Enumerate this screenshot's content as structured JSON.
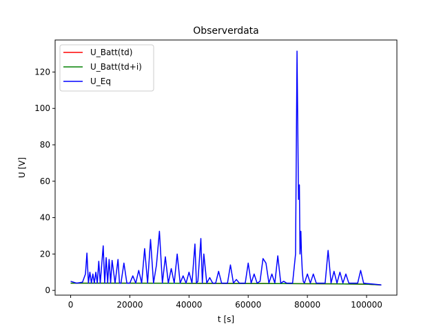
{
  "chart_data": {
    "type": "line",
    "title": "Observerdata",
    "xlabel": "t [s]",
    "ylabel": "U [V]",
    "xlim": [
      -5250,
      110250
    ],
    "ylim": [
      -2.6,
      137.6
    ],
    "xticks": [
      0,
      20000,
      40000,
      60000,
      80000,
      100000
    ],
    "xtick_labels": [
      "0",
      "20000",
      "40000",
      "60000",
      "80000",
      "100000"
    ],
    "yticks": [
      0,
      20,
      40,
      60,
      80,
      100,
      120
    ],
    "ytick_labels": [
      "0",
      "20",
      "40",
      "60",
      "80",
      "100",
      "120"
    ],
    "grid": false,
    "legend_position": "top-left",
    "colors": {
      "red": "#ff0000",
      "green": "#008000",
      "blue": "#0000ff"
    },
    "series": [
      {
        "name": "U_Batt(td)",
        "color": "#ff0000",
        "x": [
          0,
          20000,
          40000,
          60000,
          78000,
          90000,
          100000,
          105000
        ],
        "y": [
          4.0,
          4.0,
          3.9,
          3.8,
          3.7,
          3.6,
          3.4,
          3.0
        ]
      },
      {
        "name": "U_Batt(td+i)",
        "color": "#008000",
        "x": [
          0,
          20000,
          40000,
          60000,
          78000,
          90000,
          100000,
          105000
        ],
        "y": [
          4.0,
          4.0,
          3.9,
          3.8,
          3.7,
          3.6,
          3.4,
          3.0
        ]
      },
      {
        "name": "U_Eq",
        "color": "#0000ff",
        "x": [
          0,
          2000,
          4000,
          5000,
          5500,
          6000,
          6500,
          7000,
          7500,
          8000,
          8500,
          9000,
          9500,
          10000,
          11000,
          11500,
          12000,
          12500,
          13000,
          13500,
          14000,
          15000,
          16000,
          16500,
          17000,
          18000,
          19000,
          20000,
          21000,
          22000,
          23000,
          24000,
          25000,
          26000,
          27000,
          28000,
          29000,
          30000,
          31000,
          32000,
          33000,
          34000,
          35000,
          36000,
          37000,
          38000,
          39000,
          40000,
          41000,
          42000,
          42500,
          43000,
          44000,
          44500,
          45000,
          46000,
          47000,
          48000,
          49000,
          50000,
          51000,
          52000,
          53000,
          54000,
          55000,
          56000,
          57000,
          58000,
          59000,
          60000,
          61000,
          62000,
          63000,
          64000,
          65000,
          66000,
          67000,
          68000,
          69000,
          70000,
          71000,
          72000,
          73000,
          74000,
          75000,
          76000,
          76500,
          77000,
          77300,
          77500,
          77800,
          78000,
          78300,
          78600,
          79000,
          80000,
          81000,
          82000,
          83000,
          84000,
          85000,
          86000,
          87000,
          88000,
          89000,
          90000,
          91000,
          92000,
          93000,
          94000,
          95000,
          96000,
          97000,
          98000,
          99000,
          100000,
          102000,
          104000,
          105000
        ],
        "y": [
          5,
          4,
          4.5,
          9,
          20.5,
          4,
          10,
          4,
          9,
          4,
          10,
          4,
          16,
          4,
          24.5,
          4,
          18,
          4,
          17,
          4,
          16.5,
          4,
          17,
          4,
          4,
          15,
          4,
          4,
          8,
          4,
          11,
          4,
          23,
          4,
          28,
          4,
          14,
          32.5,
          4,
          18.5,
          4,
          12,
          4,
          20,
          4,
          8,
          4,
          10,
          4,
          25.5,
          4,
          5,
          28.5,
          4,
          20,
          4,
          7,
          4,
          4,
          10.5,
          4,
          4,
          4,
          14,
          4,
          6,
          4,
          4,
          4,
          15,
          4,
          9,
          4,
          5,
          17.5,
          15,
          4,
          9,
          4,
          19,
          4,
          5,
          4,
          4,
          4,
          20,
          131.5,
          50,
          58,
          20,
          32.5,
          20,
          10,
          5,
          4,
          9,
          4,
          9,
          4,
          4,
          4,
          4,
          22,
          4,
          10.5,
          4,
          10,
          4,
          9,
          4,
          4,
          4,
          4,
          11,
          4,
          3.8,
          3.5,
          3.2,
          3
        ]
      }
    ]
  }
}
